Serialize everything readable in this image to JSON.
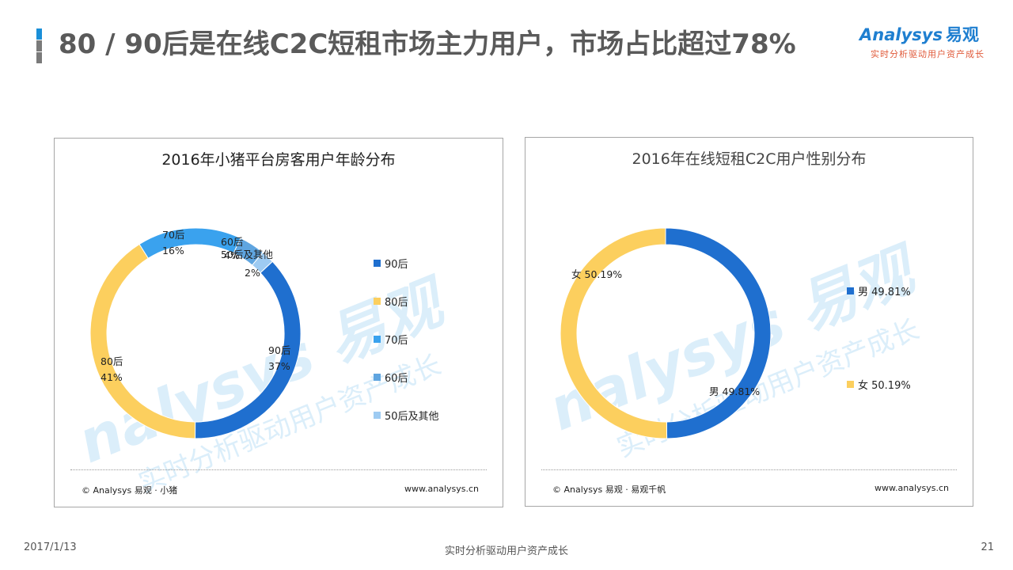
{
  "page": {
    "title": "80 / 90后是在线C2C短租市场主力用户，市场占比超过78%",
    "bar_colors": [
      "#1a8fd8",
      "#7a7a7a",
      "#7a7a7a"
    ]
  },
  "logo": {
    "name": "Analysys",
    "name_cn": "易观",
    "tagline": "实时分析驱动用户资产成长",
    "color": "#1f7fd0",
    "tag_color": "#e05a3a"
  },
  "watermark": {
    "name": "nalysys 易观",
    "tagline": "实时分析驱动用户资产成长"
  },
  "footer": {
    "date": "2017/1/13",
    "center": "实时分析驱动用户资产成长",
    "page": "21"
  },
  "chart_data": [
    {
      "type": "pie",
      "variant": "donut",
      "title": "2016年小猪平台房客用户年龄分布",
      "categories": [
        "90后",
        "80后",
        "70后",
        "60后",
        "50后及其他"
      ],
      "values": [
        37,
        41,
        16,
        4,
        2
      ],
      "colors": [
        "#1f6fcf",
        "#fccf5e",
        "#3aa2ee",
        "#5fa5e0",
        "#9ecbf2"
      ],
      "slice_labels": [
        {
          "name": "90后",
          "value": "37%"
        },
        {
          "name": "80后",
          "value": "41%"
        },
        {
          "name": "70后",
          "value": "16%"
        },
        {
          "name": "60后",
          "value": "4%"
        },
        {
          "name": "50后及其他",
          "value": "2%"
        }
      ],
      "legend": [
        "90后",
        "80后",
        "70后",
        "60后",
        "50后及其他"
      ],
      "legend_position": "right",
      "source": "© Analysys 易观 · 小猪",
      "site": "www.analysys.cn"
    },
    {
      "type": "pie",
      "variant": "donut",
      "title": "2016年在线短租C2C用户性别分布",
      "categories": [
        "男",
        "女"
      ],
      "values": [
        49.81,
        50.19
      ],
      "colors": [
        "#1f6fcf",
        "#fccf5e"
      ],
      "slice_labels": [
        {
          "name": "男",
          "value": "49.81%"
        },
        {
          "name": "女",
          "value": "50.19%"
        }
      ],
      "legend": [
        "男 49.81%",
        "女 50.19%"
      ],
      "legend_position": "right",
      "source": "© Analysys 易观 · 易观千帆",
      "site": "www.analysys.cn"
    }
  ]
}
